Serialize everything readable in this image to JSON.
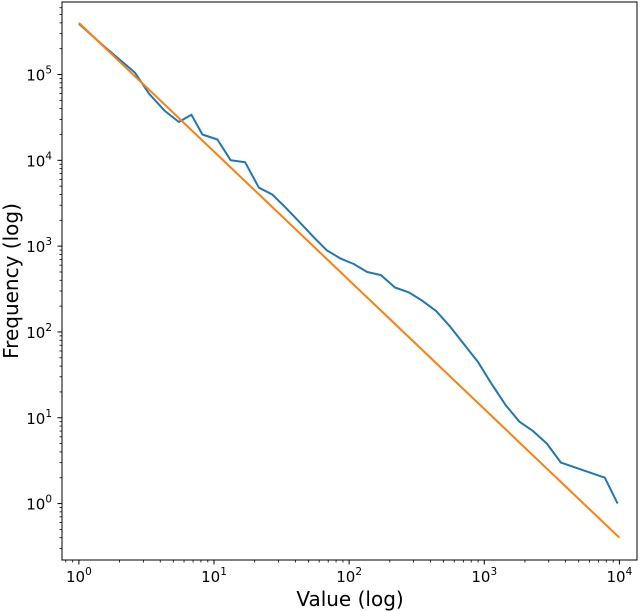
{
  "chart_data": {
    "type": "line",
    "title": "",
    "xlabel": "Value (log)",
    "ylabel": "Frequency (log)",
    "xscale": "log",
    "yscale": "log",
    "xlim": [
      0.75,
      13500
    ],
    "ylim": [
      0.22,
      700000
    ],
    "grid": false,
    "legend": "none",
    "x_ticks": [
      {
        "value": 1,
        "base": "10",
        "exp": "0"
      },
      {
        "value": 10,
        "base": "10",
        "exp": "1"
      },
      {
        "value": 100,
        "base": "10",
        "exp": "2"
      },
      {
        "value": 1000,
        "base": "10",
        "exp": "3"
      },
      {
        "value": 10000,
        "base": "10",
        "exp": "4"
      }
    ],
    "y_ticks": [
      {
        "value": 1,
        "base": "10",
        "exp": "0"
      },
      {
        "value": 10,
        "base": "10",
        "exp": "1"
      },
      {
        "value": 100,
        "base": "10",
        "exp": "2"
      },
      {
        "value": 1000,
        "base": "10",
        "exp": "3"
      },
      {
        "value": 10000,
        "base": "10",
        "exp": "4"
      },
      {
        "value": 100000,
        "base": "10",
        "exp": "5"
      }
    ],
    "series": [
      {
        "color": "#1f77b4",
        "points": [
          [
            1,
            390000
          ],
          [
            1.5,
            220000
          ],
          [
            2.6,
            105000
          ],
          [
            3.3,
            60000
          ],
          [
            4.3,
            38000
          ],
          [
            5.5,
            28000
          ],
          [
            6.8,
            34000
          ],
          [
            8.2,
            20000
          ],
          [
            10.6,
            17500
          ],
          [
            13.3,
            10000
          ],
          [
            17,
            9500
          ],
          [
            21.5,
            4800
          ],
          [
            27,
            4000
          ],
          [
            34,
            2800
          ],
          [
            43,
            1900
          ],
          [
            54,
            1300
          ],
          [
            68,
            900
          ],
          [
            86,
            720
          ],
          [
            108,
            620
          ],
          [
            136,
            500
          ],
          [
            172,
            460
          ],
          [
            218,
            330
          ],
          [
            276,
            290
          ],
          [
            349,
            230
          ],
          [
            441,
            175
          ],
          [
            560,
            115
          ],
          [
            708,
            72
          ],
          [
            896,
            45
          ],
          [
            1130,
            25
          ],
          [
            1440,
            14
          ],
          [
            1820,
            9
          ],
          [
            2300,
            7
          ],
          [
            2910,
            5
          ],
          [
            3690,
            3
          ],
          [
            7800,
            2
          ],
          [
            9700,
            1
          ]
        ]
      },
      {
        "color": "#ff7f0e",
        "points": [
          [
            1,
            400000
          ],
          [
            10000,
            0.4
          ]
        ]
      }
    ]
  }
}
